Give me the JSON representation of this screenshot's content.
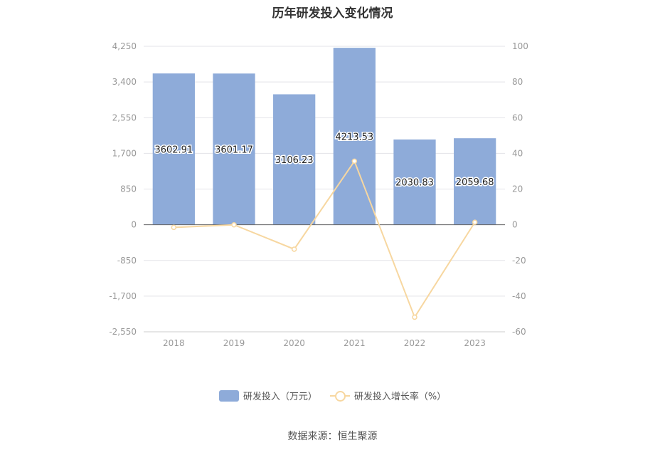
{
  "title": "历年研发投入变化情况",
  "source_label": "数据来源：恒生聚源",
  "colors": {
    "bar": "#8eabd9",
    "line": "#f7d7a0",
    "grid": "#e3e3e8",
    "axis_text": "#999999"
  },
  "chart_data": {
    "type": "bar",
    "title": "历年研发投入变化情况",
    "categories": [
      "2018",
      "2019",
      "2020",
      "2021",
      "2022",
      "2023"
    ],
    "series": [
      {
        "name": "研发投入（万元）",
        "type": "bar",
        "axis": "left",
        "values": [
          3602.91,
          3601.17,
          3106.23,
          4213.53,
          2030.83,
          2059.68
        ],
        "labels": [
          "3602.91",
          "3601.17",
          "3106.23",
          "4213.53",
          "2030.83",
          "2059.68"
        ]
      },
      {
        "name": "研发投入增长率（%）",
        "type": "line",
        "axis": "right",
        "values": [
          -1.5,
          -0.05,
          -13.7,
          35.6,
          -51.8,
          1.4
        ]
      }
    ],
    "y_left": {
      "min": -2550,
      "max": 4250,
      "ticks": [
        "4,250",
        "3,400",
        "2,550",
        "1,700",
        "850",
        "0",
        "-850",
        "-1,700",
        "-2,550"
      ]
    },
    "y_right": {
      "min": -60,
      "max": 100,
      "ticks": [
        "100",
        "80",
        "60",
        "40",
        "20",
        "0",
        "-20",
        "-40",
        "-60"
      ]
    },
    "grid": true,
    "legend_position": "bottom"
  }
}
